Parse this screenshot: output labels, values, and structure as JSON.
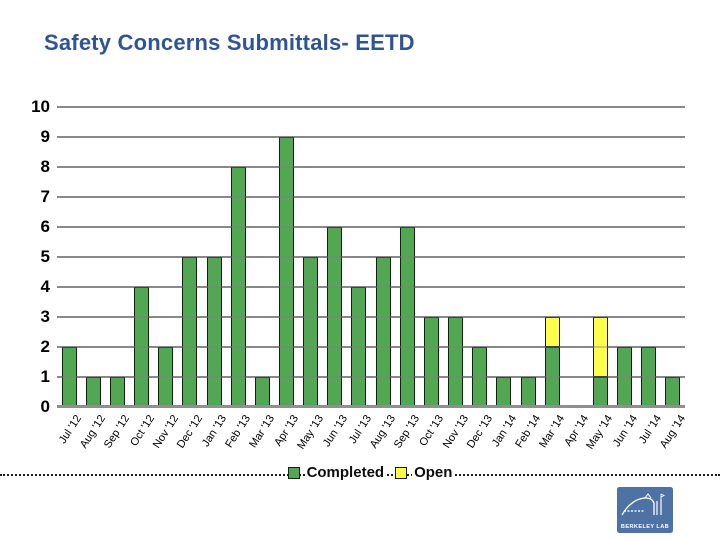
{
  "slide": {
    "title": "Safety Concerns Submittals- EETD"
  },
  "legend": {
    "completed": "Completed",
    "open": "Open"
  },
  "logo": {
    "caption": "BERKELEY LAB"
  },
  "colors": {
    "title": "#2f5496",
    "completed": "#52a852",
    "open": "#ffff4b",
    "gridline": "#8f8f8f",
    "bar_border": "#1b1b1b"
  },
  "chart_data": {
    "type": "bar",
    "stacked": true,
    "title": "Safety Concerns Submittals- EETD",
    "categories": [
      "Jul '12",
      "Aug '12",
      "Sep '12",
      "Oct '12",
      "Nov '12",
      "Dec '12",
      "Jan '13",
      "Feb '13",
      "Mar '13",
      "Apr '13",
      "May '13",
      "Jun '13",
      "Jul '13",
      "Aug '13",
      "Sep '13",
      "Oct '13",
      "Nov '13",
      "Dec '13",
      "Jan '14",
      "Feb '14",
      "Mar '14",
      "Apr '14",
      "May '14",
      "Jun '14",
      "Jul '14",
      "Aug '14"
    ],
    "series": [
      {
        "name": "Completed",
        "color": "#52a852",
        "values": [
          2,
          1,
          1,
          4,
          2,
          5,
          5,
          8,
          1,
          9,
          5,
          6,
          4,
          5,
          6,
          3,
          3,
          2,
          1,
          1,
          2,
          0,
          1,
          2,
          2,
          1
        ]
      },
      {
        "name": "Open",
        "color": "#ffff4b",
        "values": [
          0,
          0,
          0,
          0,
          0,
          0,
          0,
          0,
          0,
          0,
          0,
          0,
          0,
          0,
          0,
          0,
          0,
          0,
          0,
          0,
          1,
          0,
          2,
          0,
          0,
          0
        ]
      }
    ],
    "ylim": [
      0,
      10
    ],
    "ytick_step": 1,
    "grid": true,
    "xlabel": "",
    "ylabel": "",
    "legend_position": "bottom-center"
  }
}
